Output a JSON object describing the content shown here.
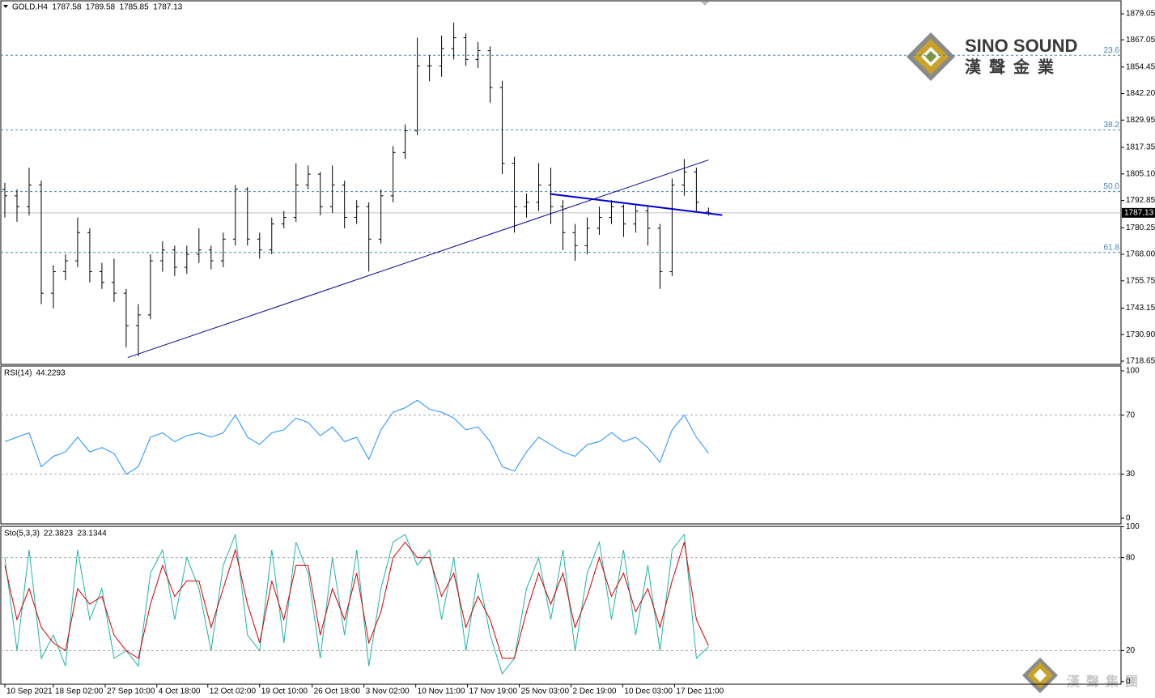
{
  "chart_data": [
    {
      "type": "ohlc",
      "title": "GOLD,H4",
      "x": [
        0,
        1,
        2,
        3,
        4,
        5,
        6,
        7,
        8,
        9,
        10,
        11,
        12,
        13,
        14,
        15,
        16,
        17,
        18,
        19,
        20,
        21,
        22,
        23,
        24,
        25,
        26,
        27,
        28,
        29,
        30,
        31,
        32,
        33,
        34,
        35,
        36,
        37,
        38,
        39,
        40,
        41,
        42,
        43,
        44,
        45,
        46,
        47,
        48,
        49,
        50,
        51,
        52,
        53,
        54,
        55,
        56,
        57,
        58
      ],
      "open": [
        1798,
        1795,
        1790,
        1800,
        1750,
        1760,
        1765,
        1778,
        1760,
        1755,
        1750,
        1735,
        1740,
        1765,
        1770,
        1762,
        1768,
        1770,
        1765,
        1775,
        1798,
        1775,
        1770,
        1782,
        1785,
        1800,
        1805,
        1790,
        1800,
        1785,
        1790,
        1775,
        1795,
        1815,
        1825,
        1855,
        1855,
        1863,
        1868,
        1858,
        1862,
        1845,
        1810,
        1790,
        1792,
        1800,
        1790,
        1778,
        1772,
        1780,
        1785,
        1790,
        1782,
        1788,
        1780,
        1760,
        1800,
        1806,
        1787.58
      ],
      "high": [
        1801,
        1798,
        1808,
        1802,
        1763,
        1768,
        1785,
        1780,
        1764,
        1766,
        1752,
        1745,
        1768,
        1774,
        1772,
        1772,
        1780,
        1772,
        1778,
        1800,
        1799,
        1778,
        1785,
        1788,
        1810,
        1809,
        1806,
        1809,
        1802,
        1793,
        1792,
        1798,
        1818,
        1828,
        1868,
        1860,
        1869,
        1875,
        1870,
        1866,
        1864,
        1848,
        1813,
        1796,
        1810,
        1808,
        1793,
        1782,
        1785,
        1790,
        1793,
        1791,
        1791,
        1790,
        1782,
        1803,
        1812,
        1808,
        1789.58
      ],
      "low": [
        1785,
        1783,
        1786,
        1745,
        1743,
        1756,
        1762,
        1755,
        1752,
        1746,
        1725,
        1721,
        1738,
        1760,
        1758,
        1759,
        1764,
        1761,
        1762,
        1772,
        1772,
        1766,
        1768,
        1780,
        1783,
        1798,
        1786,
        1787,
        1780,
        1782,
        1760,
        1773,
        1792,
        1812,
        1823,
        1848,
        1850,
        1858,
        1855,
        1854,
        1838,
        1805,
        1778,
        1785,
        1788,
        1782,
        1770,
        1765,
        1768,
        1777,
        1782,
        1776,
        1778,
        1772,
        1752,
        1758,
        1795,
        1788,
        1785.85
      ],
      "close": [
        1795,
        1790,
        1800,
        1750,
        1760,
        1765,
        1778,
        1760,
        1755,
        1750,
        1735,
        1740,
        1765,
        1770,
        1762,
        1768,
        1770,
        1765,
        1775,
        1798,
        1775,
        1770,
        1782,
        1785,
        1800,
        1805,
        1790,
        1800,
        1785,
        1790,
        1775,
        1795,
        1815,
        1825,
        1855,
        1855,
        1863,
        1868,
        1858,
        1862,
        1845,
        1810,
        1790,
        1792,
        1800,
        1790,
        1778,
        1772,
        1780,
        1785,
        1790,
        1782,
        1788,
        1780,
        1760,
        1800,
        1806,
        1792,
        1787.13
      ],
      "color": "#000000",
      "xlim": [
        -0.333,
        92
      ],
      "xticks": [
        {
          "value": 0,
          "label": "10 Sep 2021"
        },
        {
          "value": 4,
          "label": "18 Sep 02:00"
        },
        {
          "value": 8.27,
          "label": "27 Sep 10:00"
        },
        {
          "value": 12.53,
          "label": "4 Oct 18:00"
        },
        {
          "value": 16.73,
          "label": "12 Oct 02:00"
        },
        {
          "value": 21,
          "label": "19 Oct 10:00"
        },
        {
          "value": 25.33,
          "label": "26 Oct 18:00"
        },
        {
          "value": 29.6,
          "label": "3 Nov 02:00"
        },
        {
          "value": 33.87,
          "label": "10 Nov 11:00"
        },
        {
          "value": 38.13,
          "label": "17 Nov 19:00"
        },
        {
          "value": 42.4,
          "label": "25 Nov 03:00"
        },
        {
          "value": 46.67,
          "label": "2 Dec 19:00"
        },
        {
          "value": 50.93,
          "label": "10 Dec 03:00"
        },
        {
          "value": 55.2,
          "label": "17 Dec 11:00"
        }
      ],
      "ylim": [
        1717.15,
        1885.05
      ],
      "yticks": [
        1879.05,
        1867.05,
        1854.45,
        {
          "value": 1842.2,
          "label": "1842.20"
        },
        1829.95,
        1817.35,
        {
          "value": 1805.1,
          "label": "1805.10"
        },
        1792.85,
        1780.25,
        {
          "value": 1768,
          "label": "1768.00"
        },
        1755.75,
        1743.15,
        {
          "value": 1730.9,
          "label": "1730.90"
        },
        1718.65
      ],
      "levels": [
        {
          "value": 1859.9,
          "label": "23.6"
        },
        {
          "value": 1825.45,
          "label": "38.2"
        },
        {
          "value": 1796.95,
          "label": "50.0"
        },
        {
          "value": 1768.85,
          "label": "61.8"
        }
      ],
      "level_color": "#4682b4",
      "lines": [
        {
          "x": [
            10.13,
            58
          ],
          "y": [
            1720.3,
            1811.55
          ],
          "color": "#00008b",
          "width": 1
        },
        {
          "x": [
            44.93,
            59.13
          ],
          "y": [
            1795.85,
            1786.1
          ],
          "color": "#0000cd",
          "width": 2
        }
      ]
    },
    {
      "type": "line",
      "title": "RSI(14)",
      "values": [
        52,
        55,
        58,
        35,
        42,
        45,
        55,
        45,
        48,
        44,
        30,
        35,
        55,
        58,
        52,
        56,
        58,
        55,
        58,
        70,
        55,
        50,
        58,
        60,
        68,
        65,
        56,
        62,
        52,
        55,
        40,
        60,
        72,
        75,
        80,
        74,
        72,
        68,
        60,
        62,
        52,
        35,
        32,
        45,
        55,
        50,
        45,
        42,
        50,
        52,
        58,
        52,
        55,
        48,
        38,
        60,
        70,
        55,
        44.2293
      ],
      "color": "#1e90ff",
      "ylim": [
        -3.8,
        103.3
      ],
      "yticks": [
        0,
        30,
        70,
        100
      ],
      "levels": [
        30,
        70
      ]
    },
    {
      "type": "line",
      "title": "Sto(5,3,3)",
      "series": [
        {
          "color": "#20b2aa",
          "values": [
            80,
            20,
            85,
            15,
            30,
            10,
            85,
            40,
            60,
            15,
            20,
            10,
            70,
            85,
            40,
            80,
            60,
            20,
            75,
            95,
            30,
            20,
            85,
            25,
            90,
            70,
            15,
            80,
            30,
            85,
            10,
            60,
            90,
            95,
            75,
            85,
            40,
            80,
            20,
            70,
            30,
            5,
            15,
            60,
            80,
            40,
            85,
            20,
            70,
            90,
            40,
            85,
            30,
            75,
            20,
            85,
            95,
            15,
            22.3823
          ]
        },
        {
          "color": "#d00000",
          "values": [
            75,
            40,
            60,
            35,
            25,
            20,
            60,
            50,
            55,
            30,
            20,
            15,
            50,
            75,
            55,
            65,
            65,
            35,
            60,
            85,
            50,
            25,
            65,
            40,
            75,
            75,
            30,
            60,
            40,
            70,
            25,
            45,
            80,
            90,
            80,
            80,
            55,
            70,
            35,
            55,
            40,
            15,
            15,
            45,
            70,
            50,
            70,
            35,
            55,
            80,
            55,
            70,
            45,
            60,
            35,
            65,
            90,
            40,
            23.1344
          ]
        }
      ],
      "ylim": [
        -1.7,
        100.2
      ],
      "yticks": [
        0,
        20,
        80,
        100
      ],
      "levels": [
        20,
        80
      ]
    }
  ],
  "logo": {
    "brand": "SINO SOUND",
    "chinese": "漢聲金業",
    "footer": "漢聲集團"
  }
}
